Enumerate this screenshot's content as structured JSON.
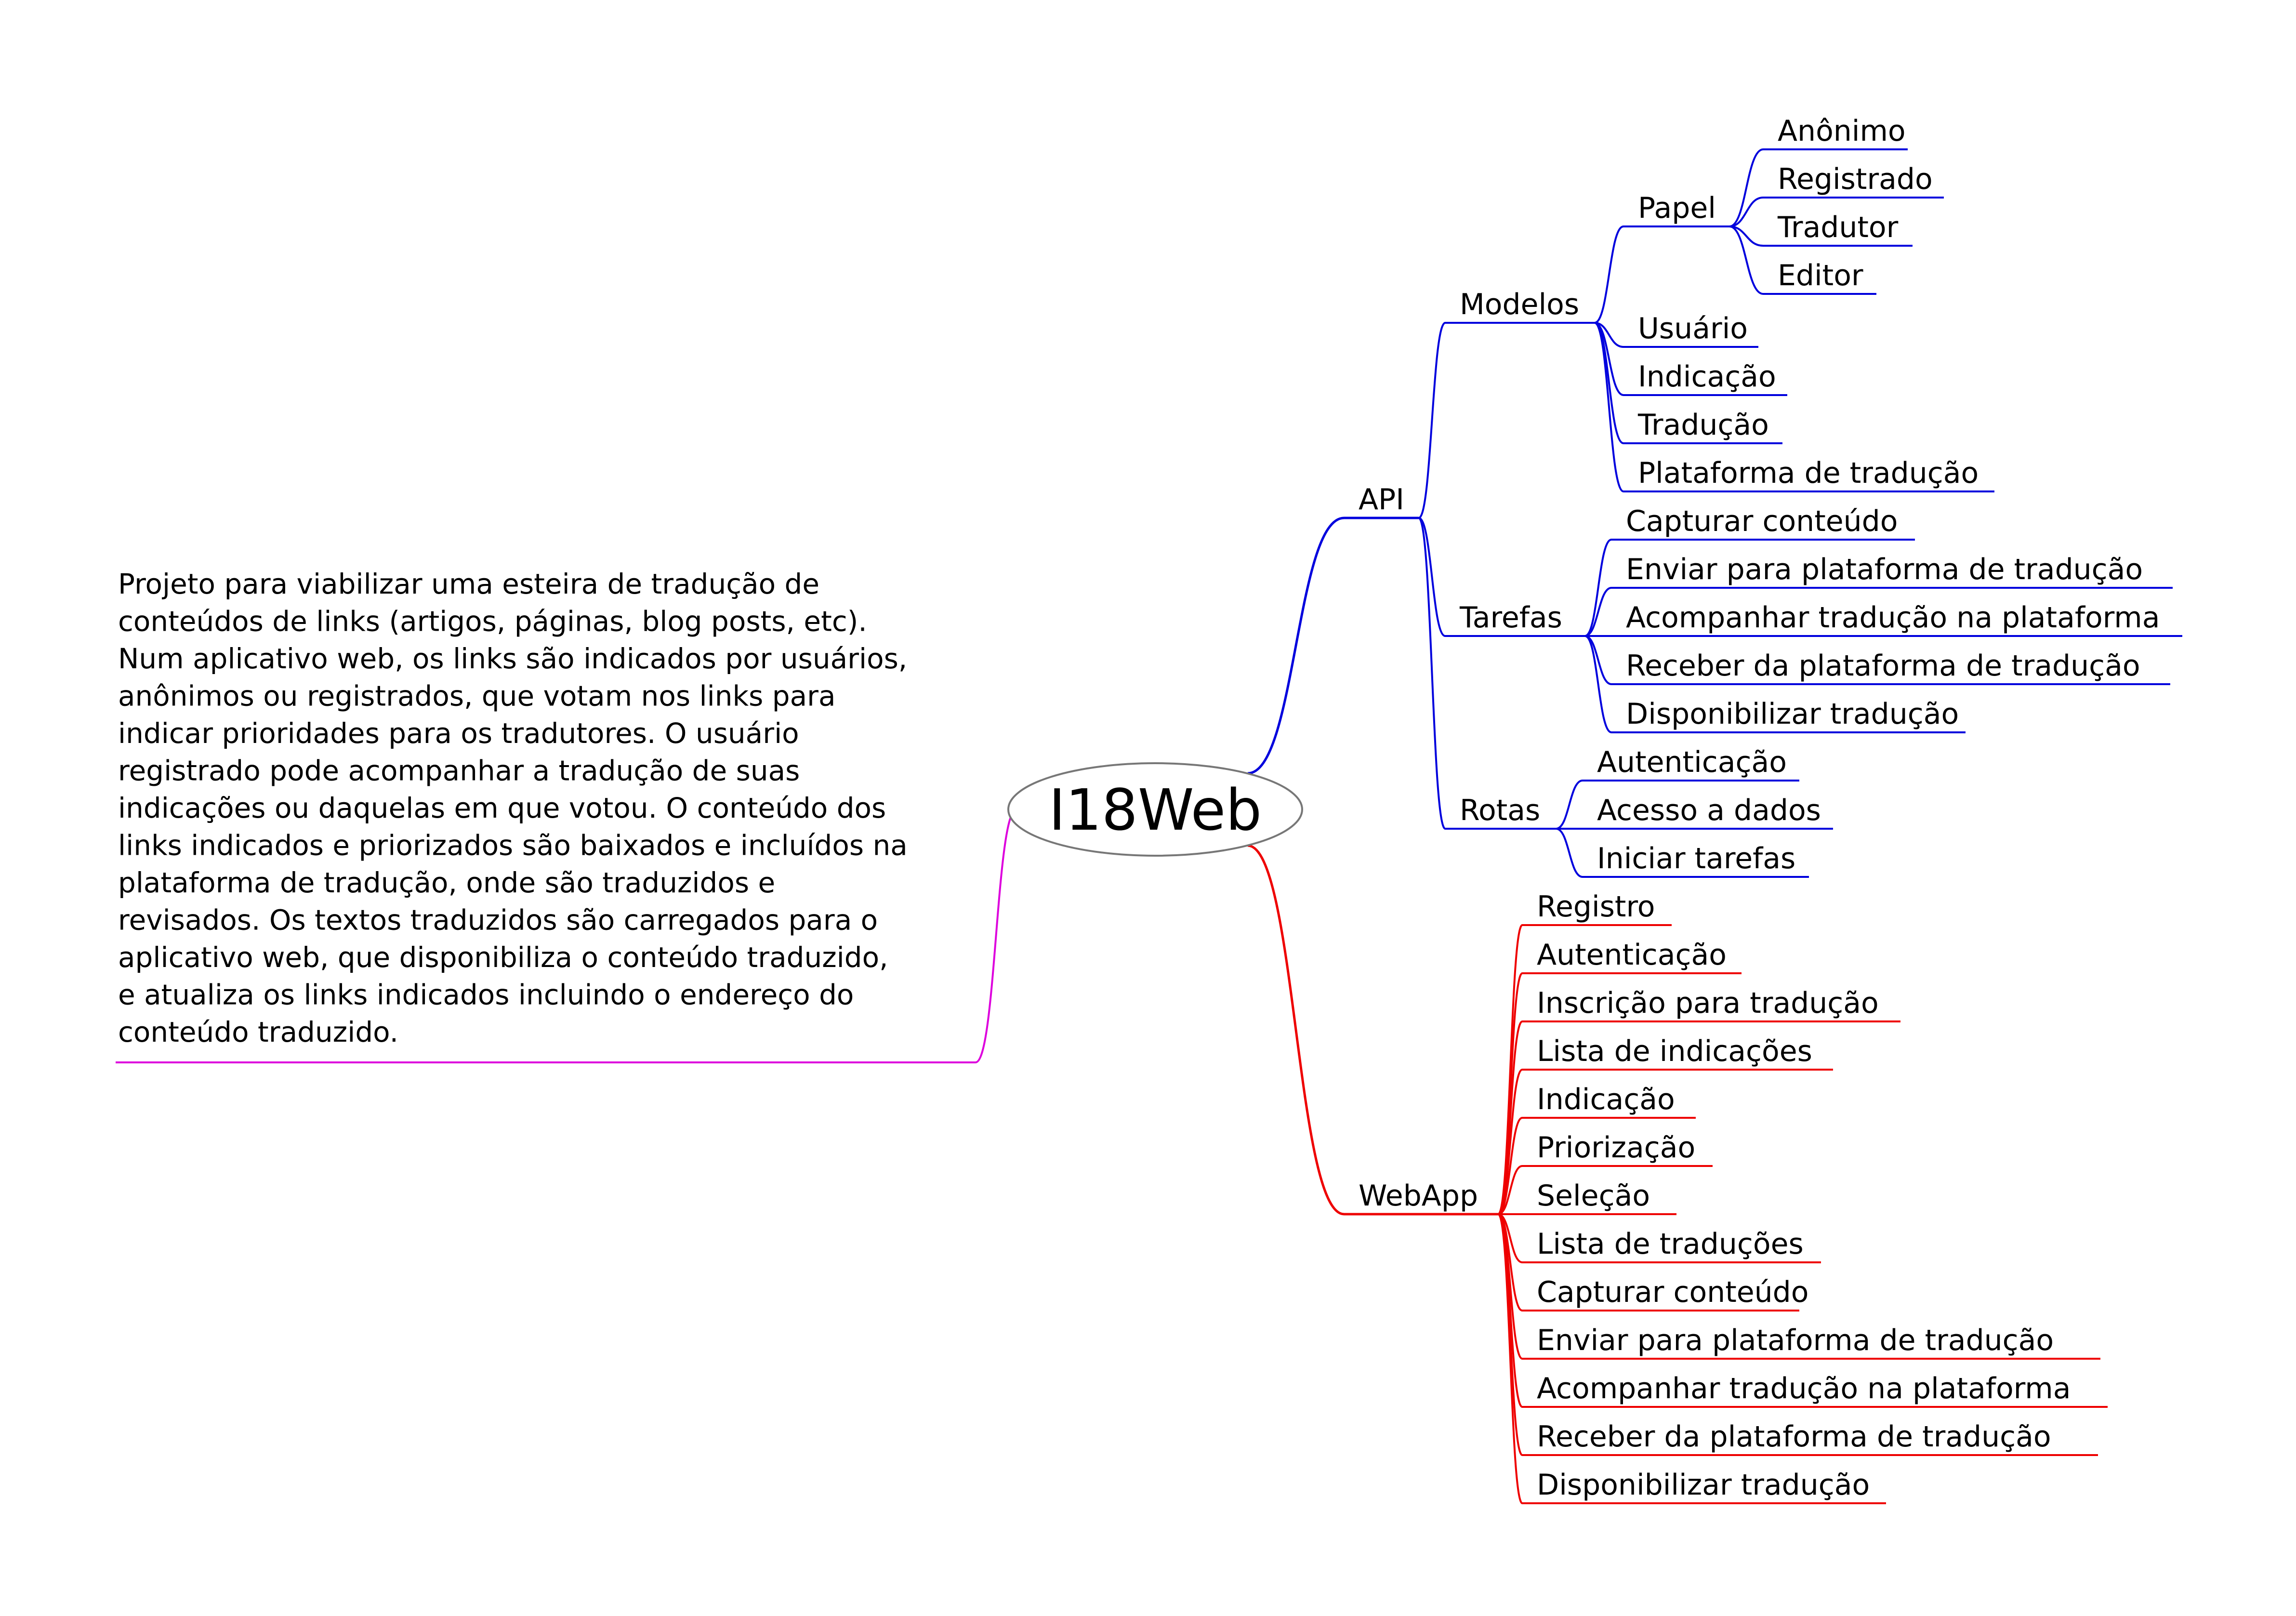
{
  "root": {
    "label": "I18Web"
  },
  "description": {
    "lines": [
      "Projeto para viabilizar uma esteira de tradução de",
      "conteúdos de links (artigos, páginas, blog posts, etc).",
      "Num aplicativo web, os links são indicados por usuários,",
      "anônimos ou registrados, que votam nos links para",
      "indicar prioridades para os tradutores. O usuário",
      "registrado pode acompanhar a tradução de suas",
      "indicações ou daquelas em que votou. O conteúdo dos",
      "links indicados e priorizados são baixados e incluídos na",
      "plataforma de tradução, onde são traduzidos e",
      "revisados. Os textos traduzidos são carregados para o",
      "aplicativo web, que disponibiliza o conteúdo traduzido,",
      "e atualiza os links indicados incluindo o endereço do",
      "conteúdo traduzido."
    ]
  },
  "colors": {
    "api_branch": "#0000dd",
    "webapp_branch": "#ee0000",
    "description_branch": "#dd00dd",
    "root_outline": "#777777"
  },
  "branches": {
    "api": {
      "label": "API",
      "modelos": {
        "label": "Modelos",
        "papel": {
          "label": "Papel",
          "items": [
            "Anônimo",
            "Registrado",
            "Tradutor",
            "Editor"
          ]
        },
        "items": [
          "Usuário",
          "Indicação",
          "Tradução",
          "Plataforma de tradução"
        ]
      },
      "tarefas": {
        "label": "Tarefas",
        "items": [
          "Capturar conteúdo",
          "Enviar para plataforma de tradução",
          "Acompanhar tradução na plataforma",
          "Receber da plataforma de tradução",
          "Disponibilizar tradução"
        ]
      },
      "rotas": {
        "label": "Rotas",
        "items": [
          "Autenticação",
          "Acesso a dados",
          "Iniciar tarefas"
        ]
      }
    },
    "webapp": {
      "label": "WebApp",
      "items": [
        "Registro",
        "Autenticação",
        "Inscrição para tradução",
        "Lista de indicações",
        "Indicação",
        "Priorização",
        "Seleção",
        "Lista de traduções",
        "Capturar conteúdo",
        "Enviar para plataforma de tradução",
        "Acompanhar tradução na plataforma",
        "Receber da plataforma de tradução",
        "Disponibilizar tradução"
      ]
    }
  }
}
